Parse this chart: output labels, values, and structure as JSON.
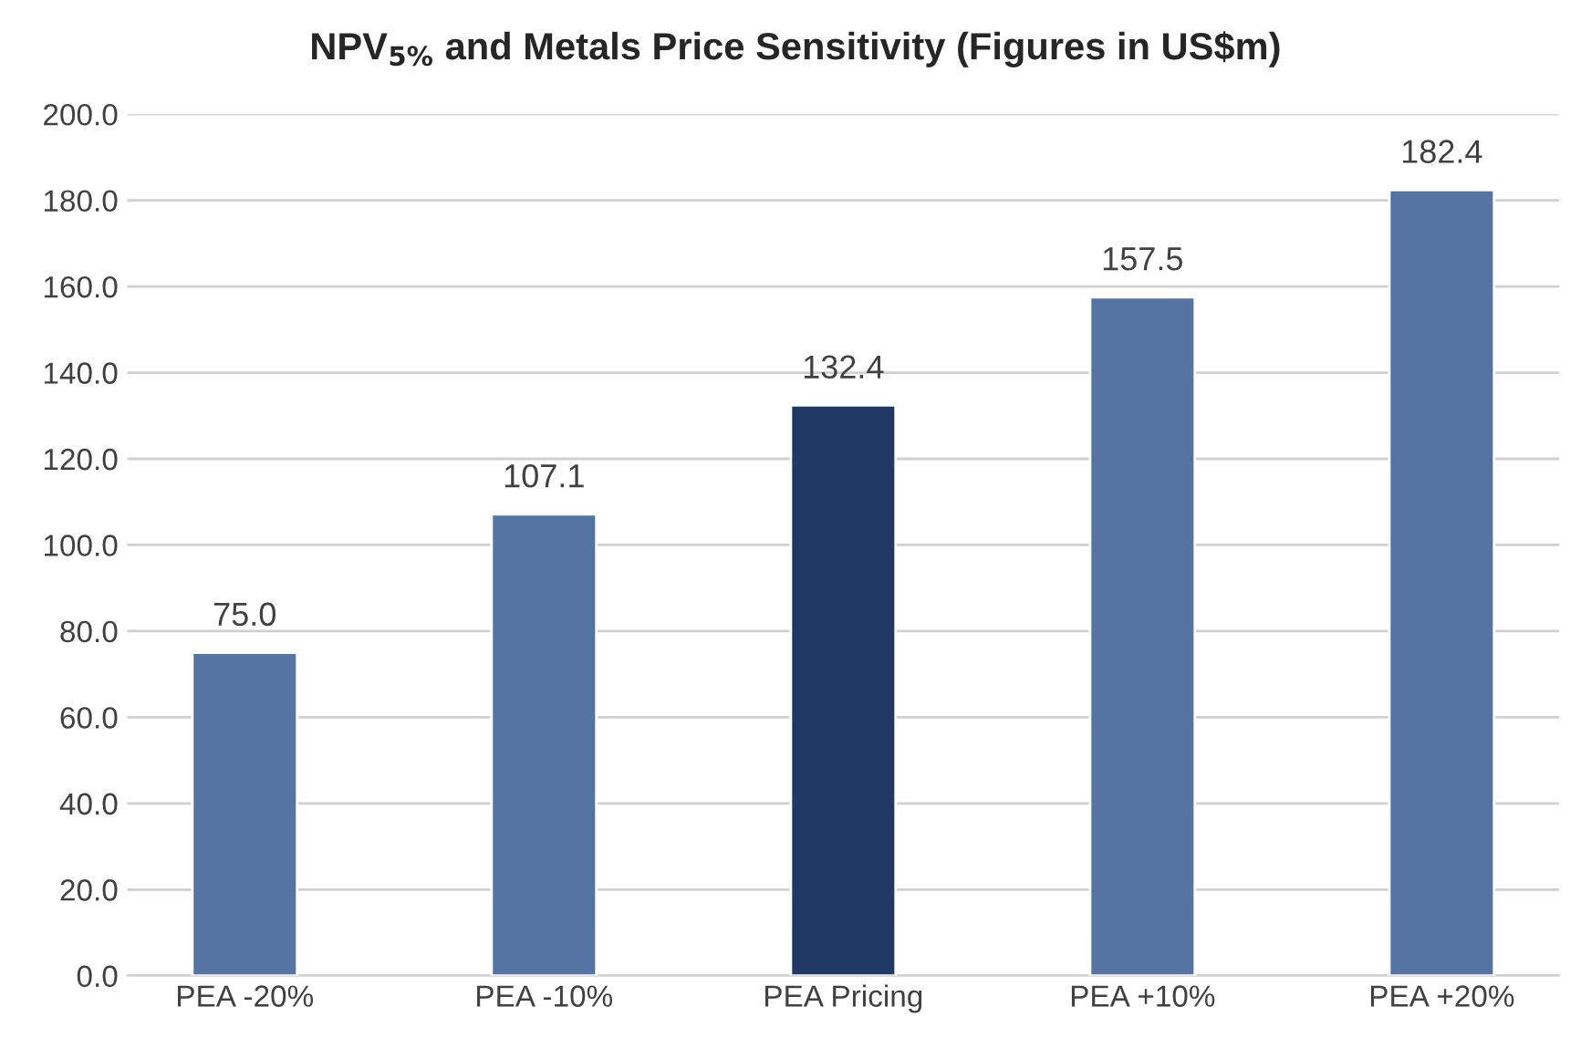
{
  "chart_data": {
    "type": "bar",
    "title": "NPV$_{5%}$ and Metals Price Sensitivity (Figures in US$m)",
    "categories": [
      "PEA -20%",
      "PEA -10%",
      "PEA Pricing",
      "PEA +10%",
      "PEA +20%"
    ],
    "values": [
      75.0,
      107.1,
      132.4,
      157.5,
      182.4
    ],
    "colors": [
      "#5573a3",
      "#5573a3",
      "#203864",
      "#5573a3",
      "#5573a3"
    ],
    "ylim": [
      0,
      200
    ],
    "yticks": [
      {
        "value": 0,
        "label": "0.0"
      },
      {
        "value": 20,
        "label": "20.0"
      },
      {
        "value": 40,
        "label": "40.0"
      },
      {
        "value": 60,
        "label": "60.0"
      },
      {
        "value": 80,
        "label": "80.0"
      },
      {
        "value": 100,
        "label": "100.0"
      },
      {
        "value": 120,
        "label": "120.0"
      },
      {
        "value": 140,
        "label": "140.0"
      },
      {
        "value": 160,
        "label": "160.0"
      },
      {
        "value": 180,
        "label": "180.0"
      },
      {
        "value": 200,
        "label": "200.0"
      }
    ],
    "value_labels": [
      "75.0",
      "107.1",
      "132.4",
      "157.5",
      "182.4"
    ],
    "grid": "y"
  }
}
